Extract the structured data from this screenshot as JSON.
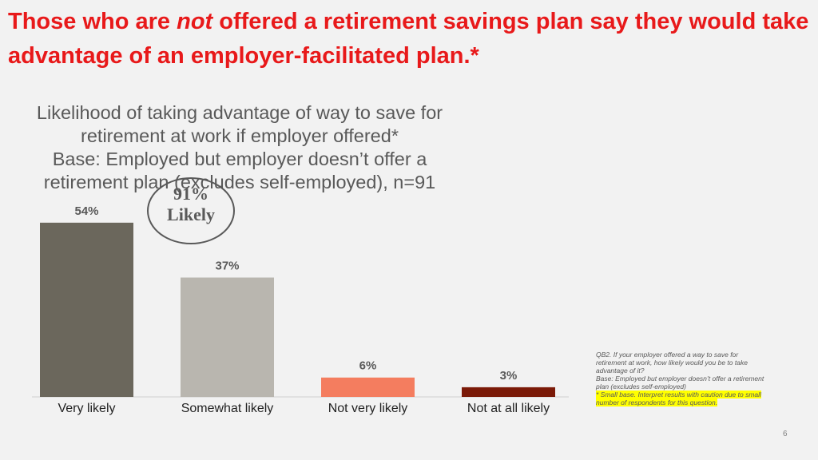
{
  "chart_data": {
    "type": "bar",
    "title_parts": [
      "Those who are ",
      "not",
      " offered a retirement savings plan say they would take advantage of an employer-facilitated plan.*"
    ],
    "subtitle": [
      "Likelihood of taking advantage of way to save for retirement at work if employer offered*",
      "Base: Employed but employer doesn’t offer a retirement plan (excludes self-employed), n=91"
    ],
    "callout": [
      "91%",
      "Likely"
    ],
    "categories": [
      "Very likely",
      "Somewhat likely",
      "Not very likely",
      "Not at all likely"
    ],
    "values": [
      54,
      37,
      6,
      3
    ],
    "value_labels": [
      "54%",
      "37%",
      "6%",
      "3%"
    ],
    "colors": [
      "#6b675c",
      "#b9b6af",
      "#f47d5f",
      "#7b1a08"
    ],
    "footnote": [
      "QB2. If your employer offered a way to save for retirement at work, how likely would you be to take advantage of it?",
      "Base: Employed but employer doesn’t offer a retirement plan (excludes self-employed)",
      "* Small base. Interpret results with caution due to small number of respondents for this question."
    ],
    "page_number": "6"
  }
}
